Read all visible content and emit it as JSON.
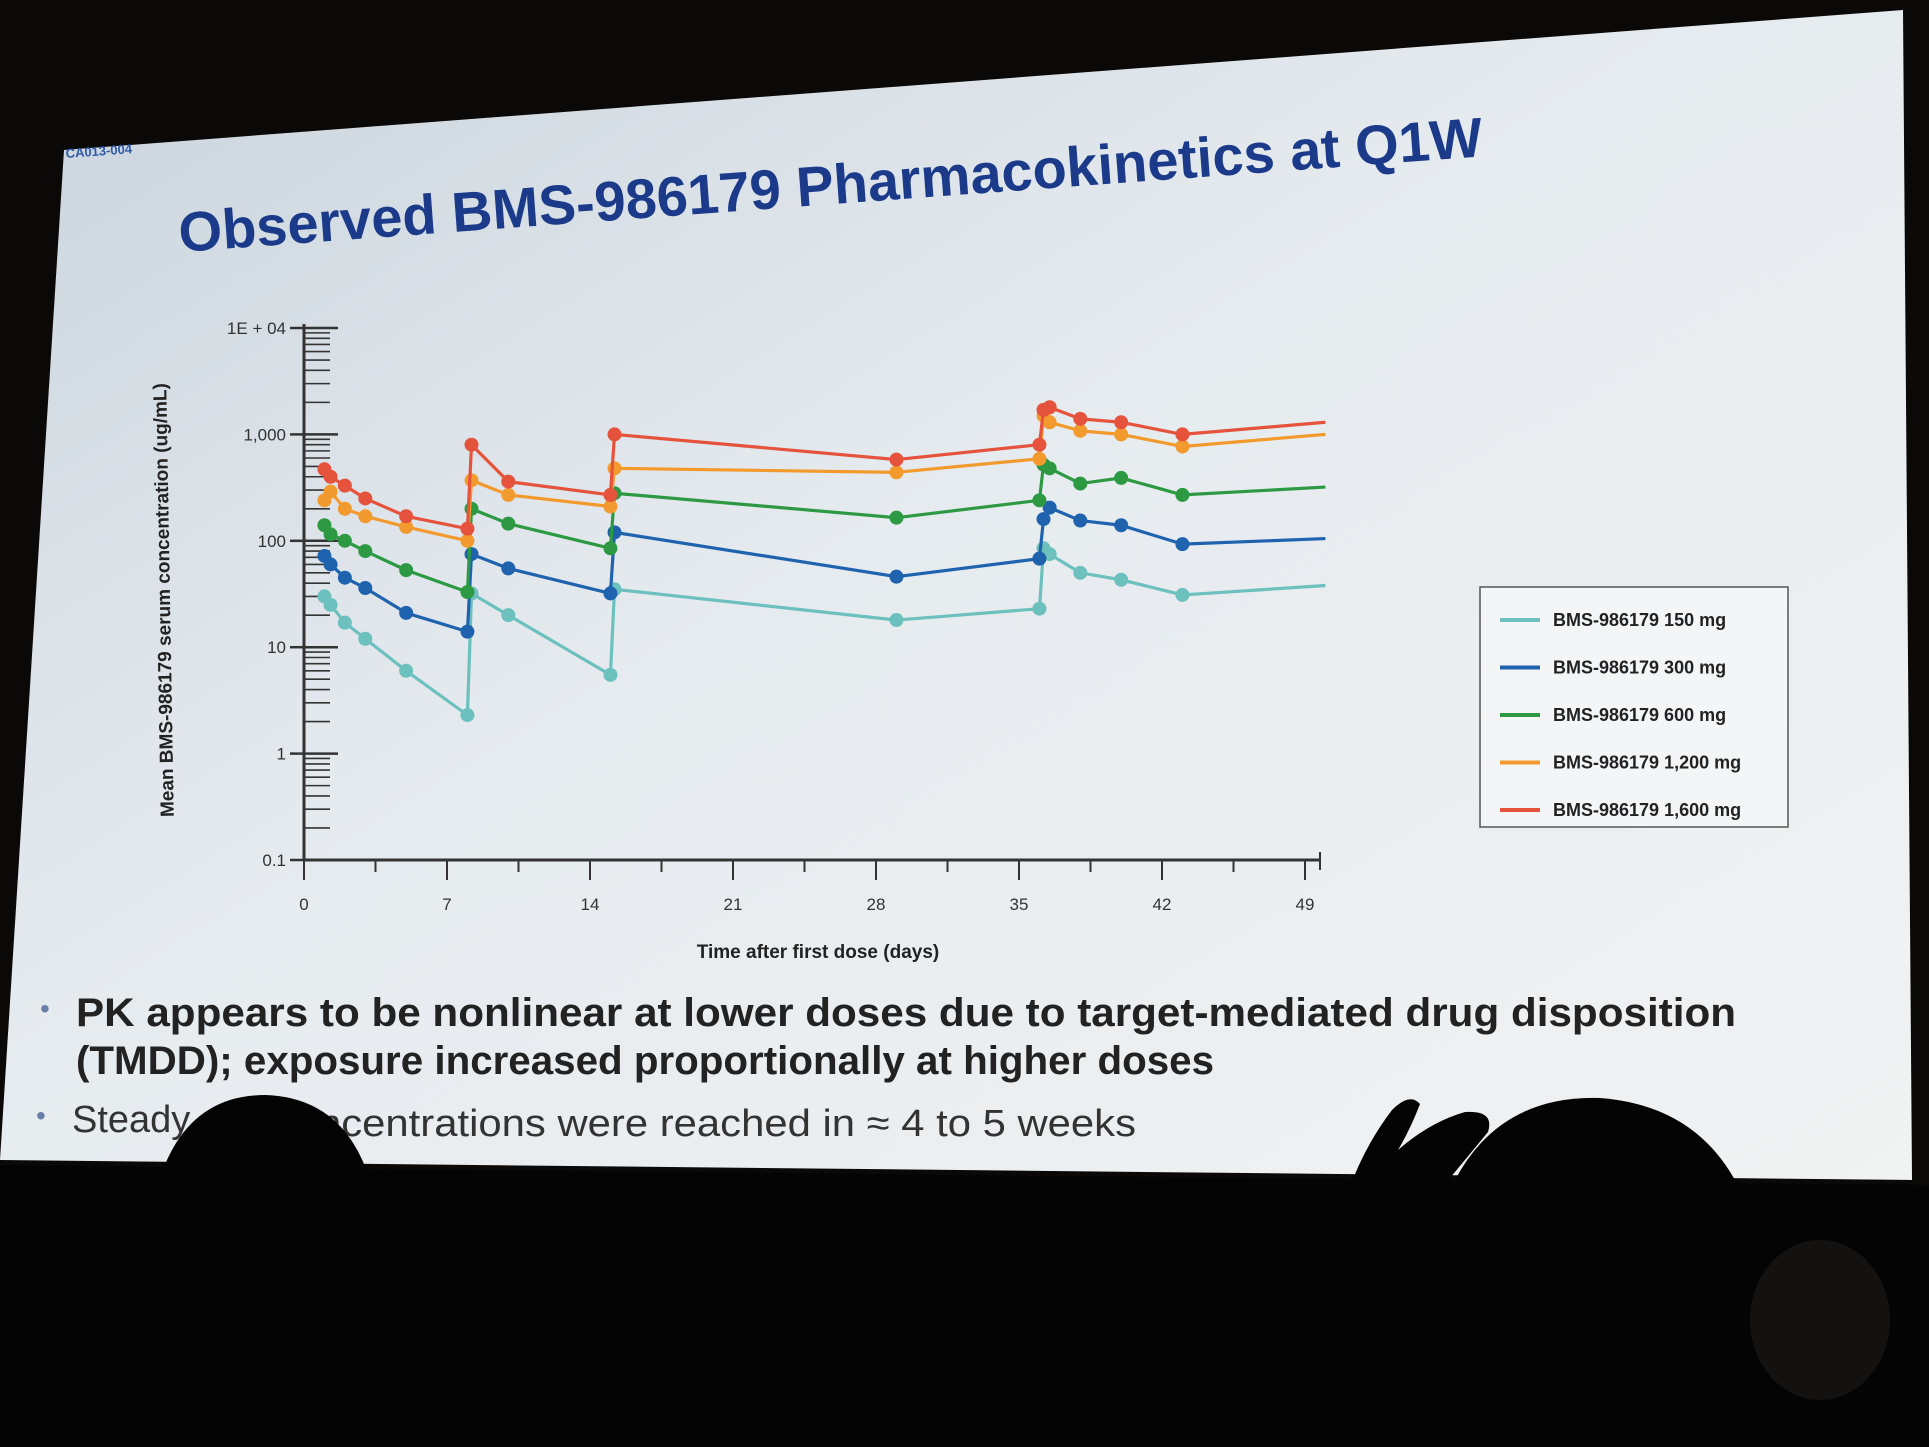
{
  "slide": {
    "code": "CA013-004",
    "title": "Observed BMS-986179 Pharmacokinetics at Q1W",
    "bullets": [
      {
        "line1": "PK appears to be nonlinear at lower doses due to target-mediated drug disposition",
        "line2": "(TMDD); exposure increased proportionally at higher doses"
      },
      {
        "line1a": "Steady",
        "line1b": "ncentrations were reached in ≈ 4 to 5 weeks"
      }
    ]
  },
  "chart_data": {
    "type": "line",
    "xlabel": "Time after first dose (days)",
    "ylabel": "Mean BMS-986179 serum concentration (ug/mL)",
    "y_scale": "log",
    "xlim": [
      0,
      49
    ],
    "ylim": [
      0.1,
      10000
    ],
    "x_ticks": [
      0,
      7,
      14,
      21,
      28,
      35,
      42,
      49
    ],
    "y_ticks": [
      {
        "value": 0.1,
        "label": "0.1"
      },
      {
        "value": 1,
        "label": "1"
      },
      {
        "value": 10,
        "label": "10"
      },
      {
        "value": 100,
        "label": "100"
      },
      {
        "value": 1000,
        "label": "1,000"
      },
      {
        "value": 10000,
        "label": "1E + 04"
      }
    ],
    "legend_position": "right",
    "series": [
      {
        "name": "BMS-986179 150 mg",
        "color": "#6cc0bd",
        "x": [
          1,
          1.3,
          2,
          3,
          5,
          8,
          8.2,
          10,
          15,
          15.2,
          29,
          36,
          36.2,
          36.5,
          38,
          40,
          43,
          50
        ],
        "y": [
          30,
          25,
          17,
          12,
          6,
          2.3,
          32,
          20,
          5.5,
          35,
          18,
          23,
          85,
          75,
          50,
          43,
          31,
          38
        ]
      },
      {
        "name": "BMS-986179 300 mg",
        "color": "#1f63ae",
        "x": [
          1,
          1.3,
          2,
          3,
          5,
          8,
          8.2,
          10,
          15,
          15.2,
          29,
          36,
          36.2,
          36.5,
          38,
          40,
          43,
          50
        ],
        "y": [
          72,
          60,
          45,
          36,
          21,
          14,
          75,
          55,
          32,
          120,
          46,
          68,
          160,
          205,
          155,
          140,
          93,
          105
        ]
      },
      {
        "name": "BMS-986179 600 mg",
        "color": "#2d9a43",
        "x": [
          1,
          1.3,
          2,
          3,
          5,
          8,
          8.2,
          10,
          15,
          15.2,
          29,
          36,
          36.2,
          36.5,
          38,
          40,
          43,
          50
        ],
        "y": [
          140,
          115,
          100,
          80,
          53,
          33,
          200,
          145,
          85,
          280,
          165,
          240,
          520,
          480,
          345,
          390,
          270,
          320
        ]
      },
      {
        "name": "BMS-986179 1,200 mg",
        "color": "#f39a2e",
        "x": [
          1,
          1.3,
          2,
          3,
          5,
          8,
          8.2,
          10,
          15,
          15.2,
          29,
          36,
          36.2,
          36.5,
          38,
          40,
          43,
          50
        ],
        "y": [
          240,
          290,
          200,
          170,
          135,
          100,
          370,
          270,
          210,
          480,
          440,
          590,
          1500,
          1300,
          1080,
          1000,
          770,
          1000
        ]
      },
      {
        "name": "BMS-986179 1,600 mg",
        "color": "#e6533c",
        "x": [
          1,
          1.3,
          2,
          3,
          5,
          8,
          8.2,
          10,
          15,
          15.2,
          29,
          36,
          36.2,
          36.5,
          38,
          40,
          43,
          50
        ],
        "y": [
          470,
          400,
          330,
          250,
          170,
          130,
          800,
          360,
          270,
          1000,
          580,
          800,
          1700,
          1800,
          1400,
          1300,
          1000,
          1300
        ]
      }
    ]
  }
}
